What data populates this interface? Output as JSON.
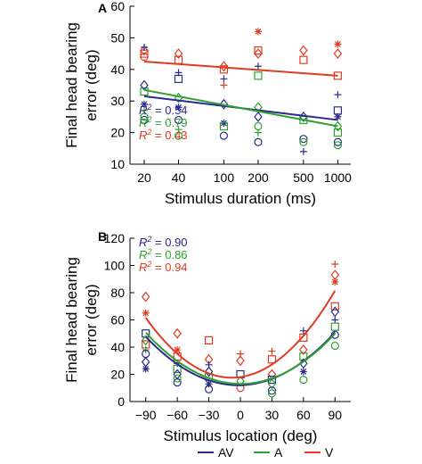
{
  "colors": {
    "AV": "#2b2b8f",
    "A": "#2ea12e",
    "V": "#e03a22",
    "axis": "#000000"
  },
  "legend": [
    {
      "key": "AV",
      "label": "AV"
    },
    {
      "key": "A",
      "label": "A"
    },
    {
      "key": "V",
      "label": "V"
    }
  ],
  "chart_data": [
    {
      "panel_label": "A",
      "type": "scatter",
      "title": "",
      "xlabel": "Stimulus duration (ms)",
      "ylabel": "Final head bearing error (deg)",
      "ylabel_lines": [
        "Final head bearing",
        "error (deg)"
      ],
      "x_scale": "log",
      "x_ticks": [
        20,
        40,
        100,
        200,
        500,
        1000
      ],
      "x_tick_labels": [
        "20",
        "40",
        "100",
        "200",
        "500",
        "1000"
      ],
      "xlim": [
        15,
        1300
      ],
      "ylim": [
        10,
        60
      ],
      "y_ticks": [
        10,
        20,
        30,
        40,
        50,
        60
      ],
      "y_tick_labels": [
        "10",
        "20",
        "30",
        "40",
        "50",
        "60"
      ],
      "r2_labels": [
        {
          "key": "AV",
          "value": "= 0.54"
        },
        {
          "key": "A",
          "value": "= 0.79"
        },
        {
          "key": "V",
          "value": "= 0.43"
        }
      ],
      "fits": [
        {
          "key": "AV",
          "type": "log-linear",
          "x": [
            20,
            1000
          ],
          "y": [
            31.5,
            24
          ]
        },
        {
          "key": "A",
          "type": "log-linear",
          "x": [
            20,
            1000
          ],
          "y": [
            33.5,
            22
          ]
        },
        {
          "key": "V",
          "type": "log-linear",
          "x": [
            20,
            1000
          ],
          "y": [
            42.5,
            38
          ]
        }
      ],
      "points": [
        {
          "x": 20,
          "y": 45,
          "key": "V",
          "m": "s"
        },
        {
          "x": 20,
          "y": 46,
          "key": "V",
          "m": "d"
        },
        {
          "x": 20,
          "y": 44,
          "key": "V",
          "m": "o"
        },
        {
          "x": 20,
          "y": 47,
          "key": "AV",
          "m": "+"
        },
        {
          "x": 20,
          "y": 33,
          "key": "A",
          "m": "s"
        },
        {
          "x": 20,
          "y": 35,
          "key": "AV",
          "m": "d"
        },
        {
          "x": 20,
          "y": 29,
          "key": "AV",
          "m": "*"
        },
        {
          "x": 20,
          "y": 27,
          "key": "A",
          "m": "+"
        },
        {
          "x": 20,
          "y": 24,
          "key": "AV",
          "m": "o"
        },
        {
          "x": 20,
          "y": 25,
          "key": "A",
          "m": "o"
        },
        {
          "x": 40,
          "y": 45,
          "key": "V",
          "m": "d"
        },
        {
          "x": 40,
          "y": 43,
          "key": "V",
          "m": "s"
        },
        {
          "x": 40,
          "y": 39,
          "key": "AV",
          "m": "+"
        },
        {
          "x": 40,
          "y": 37,
          "key": "AV",
          "m": "s"
        },
        {
          "x": 40,
          "y": 31,
          "key": "A",
          "m": "d"
        },
        {
          "x": 40,
          "y": 28,
          "key": "AV",
          "m": "*"
        },
        {
          "x": 40,
          "y": 24,
          "key": "AV",
          "m": "o"
        },
        {
          "x": 40,
          "y": 21,
          "key": "A",
          "m": "+"
        },
        {
          "x": 40,
          "y": 19,
          "key": "A",
          "m": "o"
        },
        {
          "x": 100,
          "y": 41,
          "key": "V",
          "m": "d"
        },
        {
          "x": 100,
          "y": 40,
          "key": "V",
          "m": "s"
        },
        {
          "x": 100,
          "y": 37,
          "key": "AV",
          "m": "+"
        },
        {
          "x": 100,
          "y": 35,
          "key": "V",
          "m": "+"
        },
        {
          "x": 100,
          "y": 29,
          "key": "AV",
          "m": "d"
        },
        {
          "x": 100,
          "y": 23,
          "key": "AV",
          "m": "*"
        },
        {
          "x": 100,
          "y": 19,
          "key": "AV",
          "m": "o"
        },
        {
          "x": 100,
          "y": 22,
          "key": "A",
          "m": "s"
        },
        {
          "x": 200,
          "y": 52,
          "key": "V",
          "m": "*"
        },
        {
          "x": 200,
          "y": 46,
          "key": "V",
          "m": "s"
        },
        {
          "x": 200,
          "y": 45,
          "key": "V",
          "m": "d"
        },
        {
          "x": 200,
          "y": 41,
          "key": "AV",
          "m": "+"
        },
        {
          "x": 200,
          "y": 38,
          "key": "A",
          "m": "s"
        },
        {
          "x": 200,
          "y": 28,
          "key": "A",
          "m": "d"
        },
        {
          "x": 200,
          "y": 25,
          "key": "AV",
          "m": "d"
        },
        {
          "x": 200,
          "y": 22,
          "key": "A",
          "m": "o"
        },
        {
          "x": 200,
          "y": 20,
          "key": "A",
          "m": "+"
        },
        {
          "x": 200,
          "y": 17,
          "key": "AV",
          "m": "o"
        },
        {
          "x": 500,
          "y": 46,
          "key": "V",
          "m": "d"
        },
        {
          "x": 500,
          "y": 43,
          "key": "V",
          "m": "s"
        },
        {
          "x": 500,
          "y": 25,
          "key": "AV",
          "m": "d"
        },
        {
          "x": 500,
          "y": 24,
          "key": "A",
          "m": "s"
        },
        {
          "x": 500,
          "y": 18,
          "key": "AV",
          "m": "o"
        },
        {
          "x": 500,
          "y": 14,
          "key": "AV",
          "m": "+"
        },
        {
          "x": 500,
          "y": 17,
          "key": "A",
          "m": "o"
        },
        {
          "x": 1000,
          "y": 48,
          "key": "V",
          "m": "*"
        },
        {
          "x": 1000,
          "y": 45,
          "key": "V",
          "m": "d"
        },
        {
          "x": 1000,
          "y": 38,
          "key": "V",
          "m": "s"
        },
        {
          "x": 1000,
          "y": 32,
          "key": "AV",
          "m": "+"
        },
        {
          "x": 1000,
          "y": 27,
          "key": "AV",
          "m": "s"
        },
        {
          "x": 1000,
          "y": 25,
          "key": "AV",
          "m": "*"
        },
        {
          "x": 1000,
          "y": 22,
          "key": "A",
          "m": "d"
        },
        {
          "x": 1000,
          "y": 20,
          "key": "A",
          "m": "s"
        },
        {
          "x": 1000,
          "y": 17,
          "key": "AV",
          "m": "o"
        },
        {
          "x": 1000,
          "y": 16,
          "key": "A",
          "m": "o"
        }
      ]
    },
    {
      "panel_label": "B",
      "type": "scatter",
      "title": "",
      "xlabel": "Stimulus location (deg)",
      "ylabel": "Final head bearing error (deg)",
      "ylabel_lines": [
        "Final head bearing",
        "error (deg)"
      ],
      "x_scale": "linear",
      "x_ticks": [
        -90,
        -60,
        -30,
        0,
        30,
        60,
        90
      ],
      "x_tick_labels": [
        "−90",
        "−60",
        "−30",
        "0",
        "30",
        "60",
        "90"
      ],
      "xlim": [
        -105,
        105
      ],
      "ylim": [
        0,
        120
      ],
      "y_ticks": [
        0,
        20,
        40,
        60,
        80,
        100,
        120
      ],
      "y_tick_labels": [
        "0",
        "20",
        "40",
        "60",
        "80",
        "100",
        "120"
      ],
      "r2_labels": [
        {
          "key": "AV",
          "value": "= 0.90"
        },
        {
          "key": "A",
          "value": "= 0.86"
        },
        {
          "key": "V",
          "value": "= 0.94"
        }
      ],
      "fits": [
        {
          "key": "AV",
          "type": "quadratic",
          "coef": [
            0.0046,
            0.018,
            12
          ],
          "xrange": [
            -90,
            90
          ]
        },
        {
          "key": "A",
          "type": "quadratic",
          "coef": [
            0.0046,
            -0.004,
            13
          ],
          "xrange": [
            -90,
            90
          ]
        },
        {
          "key": "V",
          "type": "quadratic",
          "coef": [
            0.0066,
            0.11,
            18
          ],
          "xrange": [
            -90,
            90
          ]
        }
      ],
      "points": [
        {
          "x": -90,
          "y": 77,
          "key": "V",
          "m": "d"
        },
        {
          "x": -90,
          "y": 65,
          "key": "V",
          "m": "*"
        },
        {
          "x": -90,
          "y": 50,
          "key": "AV",
          "m": "s"
        },
        {
          "x": -90,
          "y": 45,
          "key": "A",
          "m": "d"
        },
        {
          "x": -90,
          "y": 42,
          "key": "V",
          "m": "s"
        },
        {
          "x": -90,
          "y": 38,
          "key": "A",
          "m": "+"
        },
        {
          "x": -90,
          "y": 35,
          "key": "AV",
          "m": "o"
        },
        {
          "x": -90,
          "y": 29,
          "key": "AV",
          "m": "d"
        },
        {
          "x": -90,
          "y": 24,
          "key": "AV",
          "m": "*"
        },
        {
          "x": -60,
          "y": 50,
          "key": "V",
          "m": "d"
        },
        {
          "x": -60,
          "y": 38,
          "key": "V",
          "m": "*"
        },
        {
          "x": -60,
          "y": 33,
          "key": "V",
          "m": "s"
        },
        {
          "x": -60,
          "y": 28,
          "key": "AV",
          "m": "+"
        },
        {
          "x": -60,
          "y": 24,
          "key": "A",
          "m": "s"
        },
        {
          "x": -60,
          "y": 20,
          "key": "AV",
          "m": "d"
        },
        {
          "x": -60,
          "y": 14,
          "key": "AV",
          "m": "o"
        },
        {
          "x": -60,
          "y": 17,
          "key": "A",
          "m": "o"
        },
        {
          "x": -30,
          "y": 45,
          "key": "V",
          "m": "s"
        },
        {
          "x": -30,
          "y": 31,
          "key": "V",
          "m": "d"
        },
        {
          "x": -30,
          "y": 27,
          "key": "AV",
          "m": "+"
        },
        {
          "x": -30,
          "y": 22,
          "key": "AV",
          "m": "d"
        },
        {
          "x": -30,
          "y": 18,
          "key": "A",
          "m": "s"
        },
        {
          "x": -30,
          "y": 13,
          "key": "AV",
          "m": "*"
        },
        {
          "x": -30,
          "y": 9,
          "key": "AV",
          "m": "o"
        },
        {
          "x": 0,
          "y": 35,
          "key": "V",
          "m": "+"
        },
        {
          "x": 0,
          "y": 30,
          "key": "V",
          "m": "d"
        },
        {
          "x": 0,
          "y": 20,
          "key": "AV",
          "m": "s"
        },
        {
          "x": 0,
          "y": 15,
          "key": "A",
          "m": "d"
        },
        {
          "x": 0,
          "y": 10,
          "key": "V",
          "m": "o"
        },
        {
          "x": 30,
          "y": 37,
          "key": "V",
          "m": "+"
        },
        {
          "x": 30,
          "y": 31,
          "key": "V",
          "m": "s"
        },
        {
          "x": 30,
          "y": 20,
          "key": "V",
          "m": "d"
        },
        {
          "x": 30,
          "y": 16,
          "key": "AV",
          "m": "s"
        },
        {
          "x": 30,
          "y": 13,
          "key": "A",
          "m": "d"
        },
        {
          "x": 30,
          "y": 8,
          "key": "AV",
          "m": "o"
        },
        {
          "x": 30,
          "y": 6,
          "key": "A",
          "m": "o"
        },
        {
          "x": 60,
          "y": 52,
          "key": "AV",
          "m": "+"
        },
        {
          "x": 60,
          "y": 47,
          "key": "V",
          "m": "s"
        },
        {
          "x": 60,
          "y": 38,
          "key": "V",
          "m": "d"
        },
        {
          "x": 60,
          "y": 33,
          "key": "A",
          "m": "s"
        },
        {
          "x": 60,
          "y": 28,
          "key": "AV",
          "m": "d"
        },
        {
          "x": 60,
          "y": 22,
          "key": "AV",
          "m": "*"
        },
        {
          "x": 60,
          "y": 16,
          "key": "A",
          "m": "o"
        },
        {
          "x": 90,
          "y": 101,
          "key": "V",
          "m": "+"
        },
        {
          "x": 90,
          "y": 93,
          "key": "V",
          "m": "d"
        },
        {
          "x": 90,
          "y": 88,
          "key": "V",
          "m": "*"
        },
        {
          "x": 90,
          "y": 70,
          "key": "V",
          "m": "s"
        },
        {
          "x": 90,
          "y": 66,
          "key": "AV",
          "m": "d"
        },
        {
          "x": 90,
          "y": 60,
          "key": "AV",
          "m": "+"
        },
        {
          "x": 90,
          "y": 55,
          "key": "A",
          "m": "s"
        },
        {
          "x": 90,
          "y": 49,
          "key": "AV",
          "m": "o"
        },
        {
          "x": 90,
          "y": 41,
          "key": "A",
          "m": "o"
        }
      ]
    }
  ]
}
